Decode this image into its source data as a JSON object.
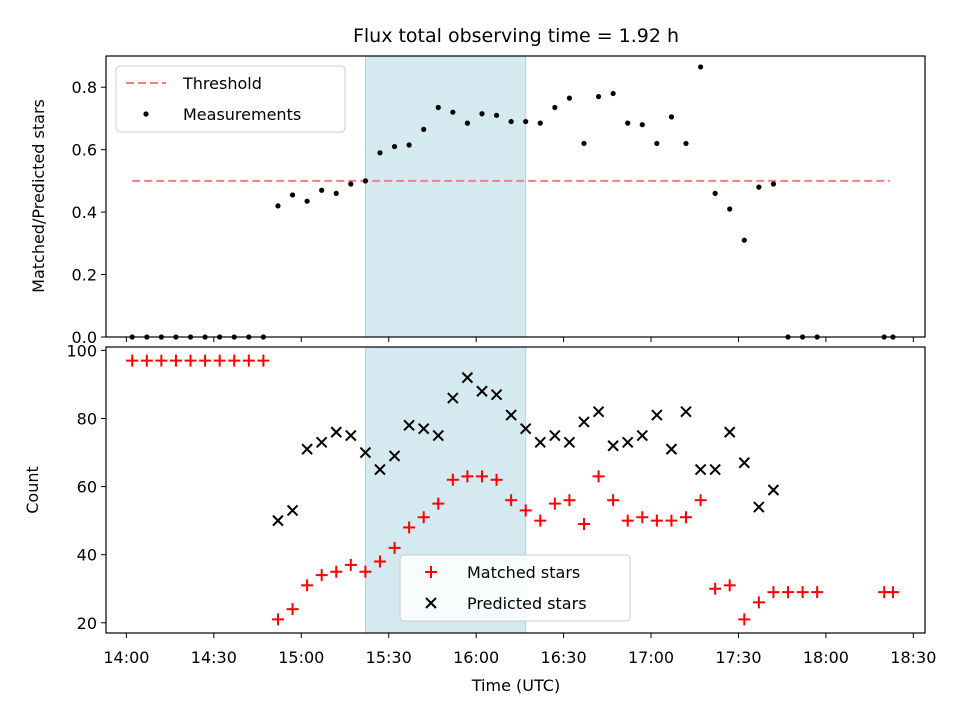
{
  "chart_data": [
    {
      "type": "scatter",
      "title": "Flux total observing time = 1.92 h",
      "xlabel": "",
      "ylabel": "Matched/Predicted stars",
      "xlim": [
        "13:53",
        "18:34"
      ],
      "ylim": [
        0,
        0.9
      ],
      "yticks": [
        "0.0",
        "0.2",
        "0.4",
        "0.6",
        "0.8"
      ],
      "shaded_interval": [
        "15:22",
        "16:17"
      ],
      "shaded_color": "#d4eaf0",
      "legend_position": "top-left",
      "series": [
        {
          "name": "Threshold",
          "style": "dashed-line",
          "color": "#ff7b7b",
          "x": [
            "14:02",
            "18:22"
          ],
          "y": [
            0.5,
            0.5
          ]
        },
        {
          "name": "Measurements",
          "style": "dot",
          "color": "#000000",
          "x": [
            "14:02",
            "14:07",
            "14:12",
            "14:17",
            "14:22",
            "14:27",
            "14:32",
            "14:37",
            "14:42",
            "14:47",
            "14:52",
            "14:57",
            "15:02",
            "15:07",
            "15:12",
            "15:17",
            "15:22",
            "15:27",
            "15:32",
            "15:37",
            "15:42",
            "15:47",
            "15:52",
            "15:57",
            "16:02",
            "16:07",
            "16:12",
            "16:17",
            "16:22",
            "16:27",
            "16:32",
            "16:37",
            "16:42",
            "16:47",
            "16:52",
            "16:57",
            "17:02",
            "17:07",
            "17:12",
            "17:17",
            "17:22",
            "17:27",
            "17:32",
            "17:37",
            "17:42",
            "17:47",
            "17:52",
            "17:57",
            "18:20",
            "18:23"
          ],
          "y": [
            0,
            0,
            0,
            0,
            0,
            0,
            0,
            0,
            0,
            0,
            0.42,
            0.455,
            0.435,
            0.47,
            0.46,
            0.49,
            0.5,
            0.59,
            0.61,
            0.615,
            0.665,
            0.735,
            0.72,
            0.685,
            0.715,
            0.71,
            0.69,
            0.69,
            0.685,
            0.735,
            0.765,
            0.62,
            0.77,
            0.78,
            0.685,
            0.68,
            0.62,
            0.705,
            0.62,
            0.865,
            0.46,
            0.41,
            0.31,
            0.48,
            0.49,
            0,
            0,
            0,
            0,
            0
          ]
        }
      ]
    },
    {
      "type": "scatter",
      "xlabel": "Time (UTC)",
      "ylabel": "Count",
      "xlim": [
        "13:53",
        "18:34"
      ],
      "ylim": [
        17,
        101
      ],
      "xticks": [
        "14:00",
        "14:30",
        "15:00",
        "15:30",
        "16:00",
        "16:30",
        "17:00",
        "17:30",
        "18:00",
        "18:30"
      ],
      "yticks": [
        "20",
        "40",
        "60",
        "80",
        "100"
      ],
      "shaded_interval": [
        "15:22",
        "16:17"
      ],
      "shaded_color": "#d4eaf0",
      "legend_position": "lower-center",
      "series": [
        {
          "name": "Matched stars",
          "marker": "plus",
          "color": "#ff0000",
          "x": [
            "14:02",
            "14:07",
            "14:12",
            "14:17",
            "14:22",
            "14:27",
            "14:32",
            "14:37",
            "14:42",
            "14:47",
            "14:52",
            "14:57",
            "15:02",
            "15:07",
            "15:12",
            "15:17",
            "15:22",
            "15:27",
            "15:32",
            "15:37",
            "15:42",
            "15:47",
            "15:52",
            "15:57",
            "16:02",
            "16:07",
            "16:12",
            "16:17",
            "16:22",
            "16:27",
            "16:32",
            "16:37",
            "16:42",
            "16:47",
            "16:52",
            "16:57",
            "17:02",
            "17:07",
            "17:12",
            "17:17",
            "17:22",
            "17:27",
            "17:32",
            "17:37",
            "17:42",
            "17:47",
            "17:52",
            "17:57",
            "18:20",
            "18:23"
          ],
          "y": [
            97,
            97,
            97,
            97,
            97,
            97,
            97,
            97,
            97,
            97,
            21,
            24,
            31,
            34,
            35,
            37,
            35,
            38,
            42,
            48,
            51,
            55,
            62,
            63,
            63,
            62,
            56,
            53,
            50,
            55,
            56,
            49,
            63,
            56,
            50,
            51,
            50,
            50,
            51,
            56,
            30,
            31,
            21,
            26,
            29,
            29,
            29,
            29,
            29,
            29
          ]
        },
        {
          "name": "Predicted stars",
          "marker": "x",
          "color": "#000000",
          "x": [
            "14:52",
            "14:57",
            "15:02",
            "15:07",
            "15:12",
            "15:17",
            "15:22",
            "15:27",
            "15:32",
            "15:37",
            "15:42",
            "15:47",
            "15:52",
            "15:57",
            "16:02",
            "16:07",
            "16:12",
            "16:17",
            "16:22",
            "16:27",
            "16:32",
            "16:37",
            "16:42",
            "16:47",
            "16:52",
            "16:57",
            "17:02",
            "17:07",
            "17:12",
            "17:17",
            "17:22",
            "17:27",
            "17:32",
            "17:37",
            "17:42"
          ],
          "y": [
            50,
            53,
            71,
            73,
            76,
            75,
            70,
            65,
            69,
            78,
            77,
            75,
            86,
            92,
            88,
            87,
            81,
            77,
            73,
            75,
            73,
            79,
            82,
            72,
            73,
            75,
            81,
            71,
            82,
            65,
            65,
            76,
            67,
            54,
            59
          ]
        }
      ]
    }
  ]
}
